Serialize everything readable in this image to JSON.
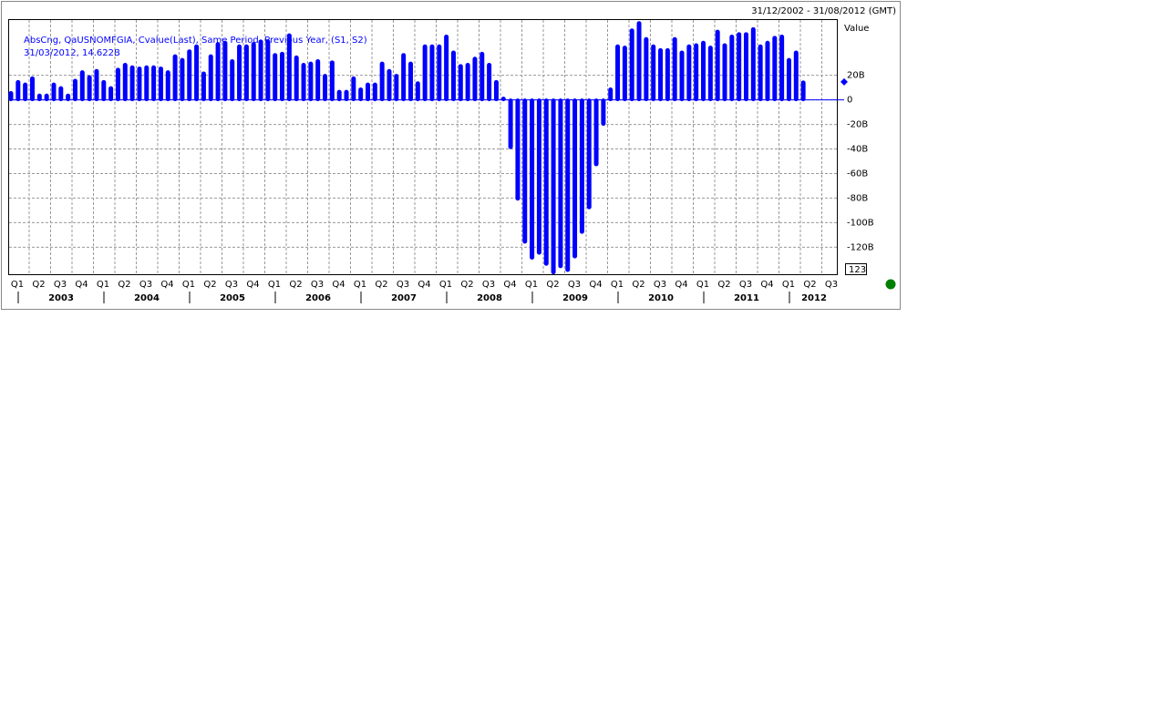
{
  "chart_data": {
    "type": "bar",
    "date_range": "31/12/2002 - 31/08/2012 (GMT)",
    "legend_lines": [
      "AbsCng, QaUSNOMFGIA, Cvalue(Last), Same Period, Previous Year, (S1, S2)",
      "31/03/2012, 14.622B"
    ],
    "value_axis_title": "Value",
    "current_min_label": "123",
    "color": "#0000ff",
    "values": [
      6,
      15,
      13,
      18,
      4,
      4,
      13,
      10,
      4,
      16,
      23,
      19,
      24,
      15,
      10,
      25,
      29,
      27,
      26,
      27,
      27,
      26,
      23,
      36,
      33,
      40,
      44,
      22,
      36,
      46,
      47,
      32,
      44,
      44,
      46,
      48,
      48,
      37,
      38,
      53,
      35,
      29,
      30,
      32,
      20,
      31,
      7,
      7,
      18,
      9,
      13,
      13,
      30,
      24,
      20,
      37,
      30,
      14,
      44,
      44,
      44,
      52,
      39,
      28,
      29,
      34,
      38,
      29,
      15,
      1.5,
      -39,
      -81,
      -116,
      -129,
      -125,
      -134,
      -141,
      -136,
      -139,
      -128,
      -108,
      -88,
      -53,
      -20,
      9,
      44,
      43,
      57,
      63,
      50,
      44,
      41,
      41,
      50,
      39,
      44,
      45,
      47,
      43,
      56,
      45,
      52,
      54,
      54,
      58,
      44,
      47,
      51,
      52,
      33,
      39,
      14.622
    ],
    "ylim": [
      -142,
      65
    ],
    "yticks": [
      {
        "value": 20,
        "label": "20B"
      },
      0,
      {
        "value": -20,
        "label": "-20B"
      },
      {
        "value": -40,
        "label": "-40B"
      },
      {
        "value": -60,
        "label": "-60B"
      },
      {
        "value": -80,
        "label": "-80B"
      },
      {
        "value": -100,
        "label": "-100B"
      },
      {
        "value": -120,
        "label": "-120B"
      }
    ],
    "quarter_labels": [
      "Q1",
      "Q2",
      "Q3",
      "Q4",
      "Q1",
      "Q2",
      "Q3",
      "Q4",
      "Q1",
      "Q2",
      "Q3",
      "Q4",
      "Q1",
      "Q2",
      "Q3",
      "Q4",
      "Q1",
      "Q2",
      "Q3",
      "Q4",
      "Q1",
      "Q2",
      "Q3",
      "Q4",
      "Q1",
      "Q2",
      "Q3",
      "Q4",
      "Q1",
      "Q2",
      "Q3",
      "Q4",
      "Q1",
      "Q2",
      "Q3",
      "Q4",
      "Q1",
      "Q2",
      "Q3"
    ],
    "year_labels": [
      "2003",
      "2004",
      "2005",
      "2006",
      "2007",
      "2008",
      "2009",
      "2010",
      "2011",
      "2012"
    ],
    "grid": true
  }
}
